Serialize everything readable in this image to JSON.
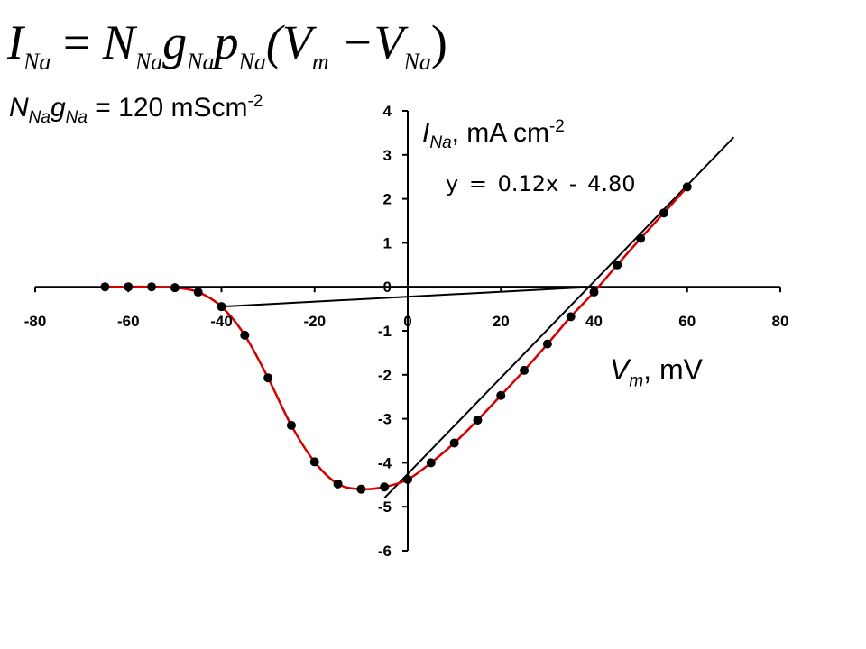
{
  "equation": {
    "I": "I",
    "I_sub": "Na",
    "eq": "=",
    "N": "N",
    "N_sub": "Na",
    "g": "g",
    "g_sub": "Na",
    "p": "p",
    "p_sub": "Na",
    "open": "(V",
    "V_sub": "m",
    "minus": "−V",
    "V2_sub": "Na",
    "close": ")"
  },
  "gna_label": {
    "N": "N",
    "N_sub": "Na",
    "g": "g",
    "g_sub": "Na",
    "value": " = 120 mScm",
    "exp": "-2"
  },
  "ina_label": {
    "I": "I",
    "I_sub": "Na",
    "unit": ", mA cm",
    "exp": "-2"
  },
  "vm_label": {
    "V": "V",
    "V_sub": "m",
    "unit": ", mV"
  },
  "fit_equation": "y = 0.12x - 4.80",
  "chart_data": {
    "type": "line",
    "xlim": [
      -80,
      80
    ],
    "ylim": [
      -6,
      4
    ],
    "xticks": [
      -80,
      -60,
      -40,
      -20,
      0,
      20,
      40,
      60,
      80
    ],
    "yticks": [
      -6,
      -5,
      -4,
      -3,
      -2,
      -1,
      0,
      1,
      2,
      3,
      4
    ],
    "x_tick_labels": [
      "-80",
      "-60",
      "-40",
      "-20",
      "0",
      "20",
      "40",
      "60",
      "80"
    ],
    "y_tick_labels": [
      "-6",
      "-5",
      "-4",
      "-3",
      "-2",
      "-1",
      "0",
      "1",
      "2",
      "3",
      "4"
    ],
    "grid": false,
    "series": [
      {
        "color": "#d40000",
        "marker_color": "#000000",
        "x": [
          -65,
          -60,
          -55,
          -50,
          -45,
          -40,
          -35,
          -30,
          -25,
          -20,
          -15,
          -10,
          -5,
          0,
          5,
          10,
          15,
          20,
          25,
          30,
          35,
          40,
          45,
          50,
          55,
          60
        ],
        "y": [
          0.0,
          0.0,
          0.0,
          -0.02,
          -0.12,
          -0.45,
          -1.1,
          -2.07,
          -3.15,
          -3.98,
          -4.48,
          -4.6,
          -4.55,
          -4.38,
          -4.0,
          -3.55,
          -3.03,
          -2.47,
          -1.9,
          -1.3,
          -0.68,
          -0.12,
          0.5,
          1.1,
          1.68,
          2.27
        ]
      }
    ],
    "reference_lines": [
      {
        "color": "#000000",
        "x": [
          -5,
          70
        ],
        "y": [
          -4.8,
          3.4
        ]
      },
      {
        "color": "#000000",
        "x": [
          -40,
          40
        ],
        "y": [
          0.0,
          0.0
        ]
      },
      {
        "color": "#000000",
        "x": [
          -40,
          40
        ],
        "y": [
          -0.45,
          0.0
        ]
      }
    ]
  }
}
